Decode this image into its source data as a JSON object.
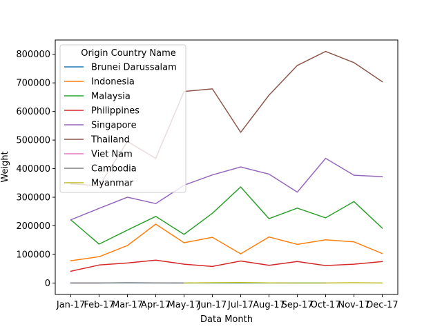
{
  "chart_data": {
    "type": "line",
    "xlabel": "Data Month",
    "ylabel": "Weight",
    "categories": [
      "Jan-17",
      "Feb-17",
      "Mar-17",
      "Apr-17",
      "May-17",
      "Jun-17",
      "Jul-17",
      "Aug-17",
      "Sep-17",
      "Oct-17",
      "Nov-17",
      "Dec-17"
    ],
    "ylim": [
      -40000,
      850000
    ],
    "yticks": [
      0,
      100000,
      200000,
      300000,
      400000,
      500000,
      600000,
      700000,
      800000
    ],
    "grid": false,
    "legend": {
      "title": "Origin Country Name",
      "placement": "upper-left"
    },
    "series": [
      {
        "name": "Brunei Darussalam",
        "color": "#1f77b4",
        "values": [
          0,
          0,
          500,
          0,
          0,
          0,
          0,
          0,
          0,
          0,
          null,
          null
        ]
      },
      {
        "name": "Indonesia",
        "color": "#ff7f0e",
        "values": [
          78000,
          92000,
          131000,
          206000,
          141000,
          160000,
          102000,
          161000,
          135000,
          151000,
          144000,
          103000
        ]
      },
      {
        "name": "Malaysia",
        "color": "#2ca02c",
        "values": [
          221000,
          136000,
          185000,
          233000,
          170000,
          244000,
          336000,
          225000,
          262000,
          228000,
          285000,
          192000
        ]
      },
      {
        "name": "Philippines",
        "color": "#d62728",
        "values": [
          41000,
          63000,
          70000,
          80000,
          66000,
          58000,
          77000,
          62000,
          75000,
          61000,
          66000,
          75000
        ]
      },
      {
        "name": "Singapore",
        "color": "#9467bd",
        "values": [
          221000,
          261000,
          300000,
          278000,
          342000,
          378000,
          406000,
          381000,
          318000,
          436000,
          377000,
          372000
        ]
      },
      {
        "name": "Thailand",
        "color": "#8c564b",
        "values": [
          347000,
          340000,
          495000,
          436000,
          670000,
          679000,
          527000,
          657000,
          761000,
          810000,
          771000,
          704000
        ]
      },
      {
        "name": "Viet Nam",
        "color": "#e377c2",
        "values": [
          0,
          0,
          null,
          null,
          null,
          null,
          null,
          null,
          null,
          null,
          null,
          null
        ]
      },
      {
        "name": "Cambodia",
        "color": "#7f7f7f",
        "values": [
          0,
          0,
          1000,
          500,
          0,
          null,
          null,
          null,
          null,
          null,
          null,
          null
        ]
      },
      {
        "name": "Myanmar",
        "color": "#bcbd22",
        "values": [
          null,
          null,
          null,
          null,
          0,
          1000,
          1500,
          500,
          0,
          0,
          1000,
          0
        ]
      }
    ]
  }
}
